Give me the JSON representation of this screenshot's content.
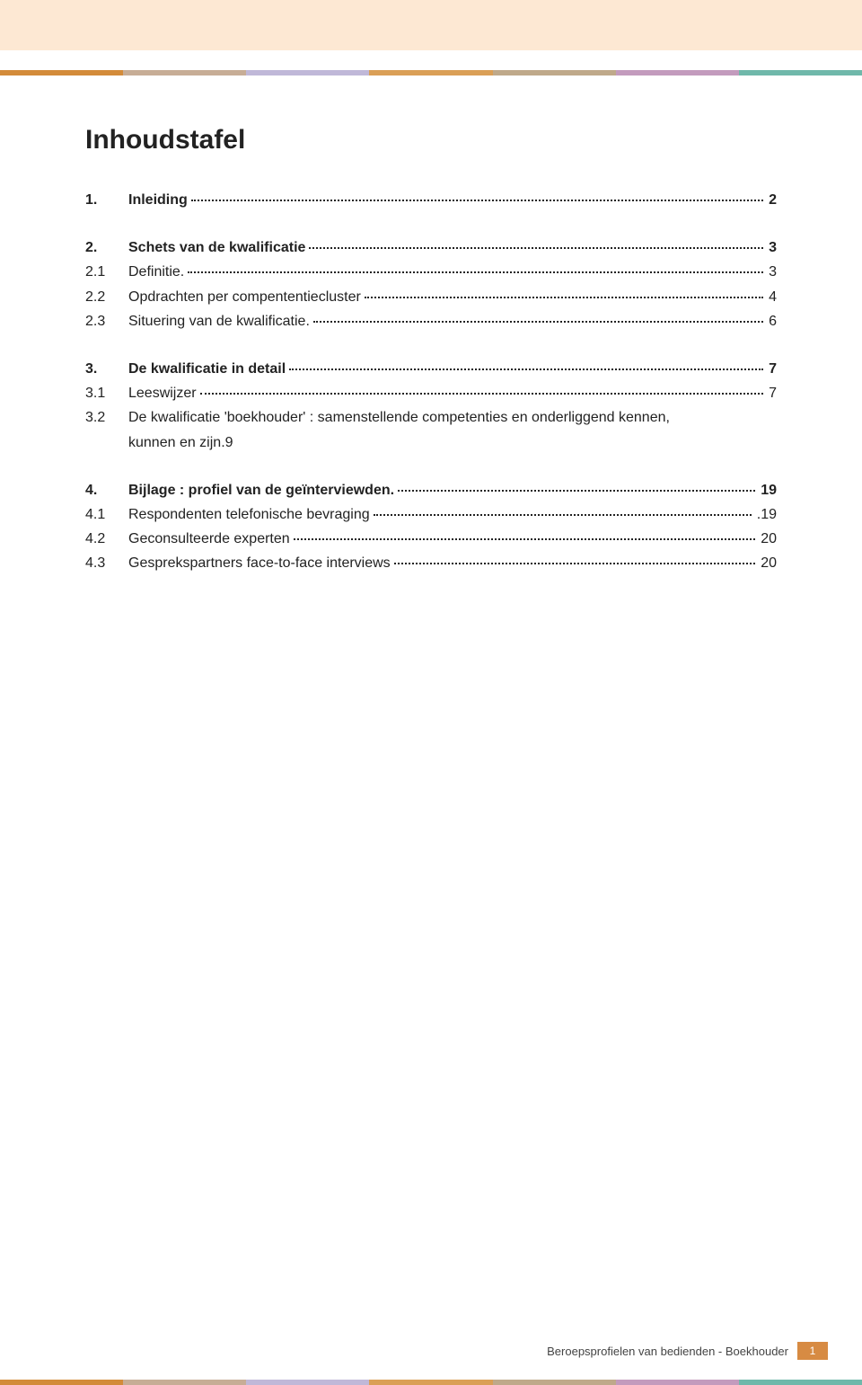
{
  "colors": {
    "top_band": "#fde8d3",
    "stripe": [
      "#d38b3a",
      "#c7ad96",
      "#c0b8d8",
      "#da9f56",
      "#bfa98a",
      "#c39bbd",
      "#6fb8aa"
    ],
    "footer_box": "#d78b43"
  },
  "title": "Inhoudstafel",
  "toc": [
    {
      "type": "group",
      "rows": [
        {
          "num": "1.",
          "label": "Inleiding",
          "page": "2",
          "bold": true
        }
      ]
    },
    {
      "type": "group",
      "rows": [
        {
          "num": "2.",
          "label": "Schets van de kwalificatie",
          "page": "3",
          "bold": true
        },
        {
          "num": "2.1",
          "label": "Definitie.",
          "page": "3",
          "bold": false
        },
        {
          "num": "2.2",
          "label": "Opdrachten per compententiecluster",
          "page": "4",
          "bold": false
        },
        {
          "num": "2.3",
          "label": "Situering van de kwalificatie.",
          "page": "6",
          "bold": false
        }
      ]
    },
    {
      "type": "group",
      "rows": [
        {
          "num": "3.",
          "label": "De kwalificatie in detail",
          "page": "7",
          "bold": true
        },
        {
          "num": "3.1",
          "label": "Leeswijzer",
          "page": "7",
          "bold": false
        }
      ],
      "multiline": {
        "num": "3.2",
        "line1": "De kwalificatie 'boekhouder' : samenstellende competenties en onderliggend kennen,",
        "line2": "kunnen en zijn.",
        "page": "9"
      }
    },
    {
      "type": "group",
      "rows": [
        {
          "num": "4.",
          "label": "Bijlage : profiel van de geïnterviewden.",
          "page": "19",
          "bold": true
        },
        {
          "num": "4.1",
          "label": "Respondenten telefonische bevraging",
          "page": ".19",
          "bold": false
        },
        {
          "num": "4.2",
          "label": "Geconsulteerde experten",
          "page": "20",
          "bold": false
        },
        {
          "num": "4.3",
          "label": "Gesprekspartners face-to-face interviews",
          "page": "20",
          "bold": false
        }
      ]
    }
  ],
  "footer": {
    "text": "Beroepsprofielen van bedienden  -  Boekhouder",
    "page_number": "1"
  }
}
